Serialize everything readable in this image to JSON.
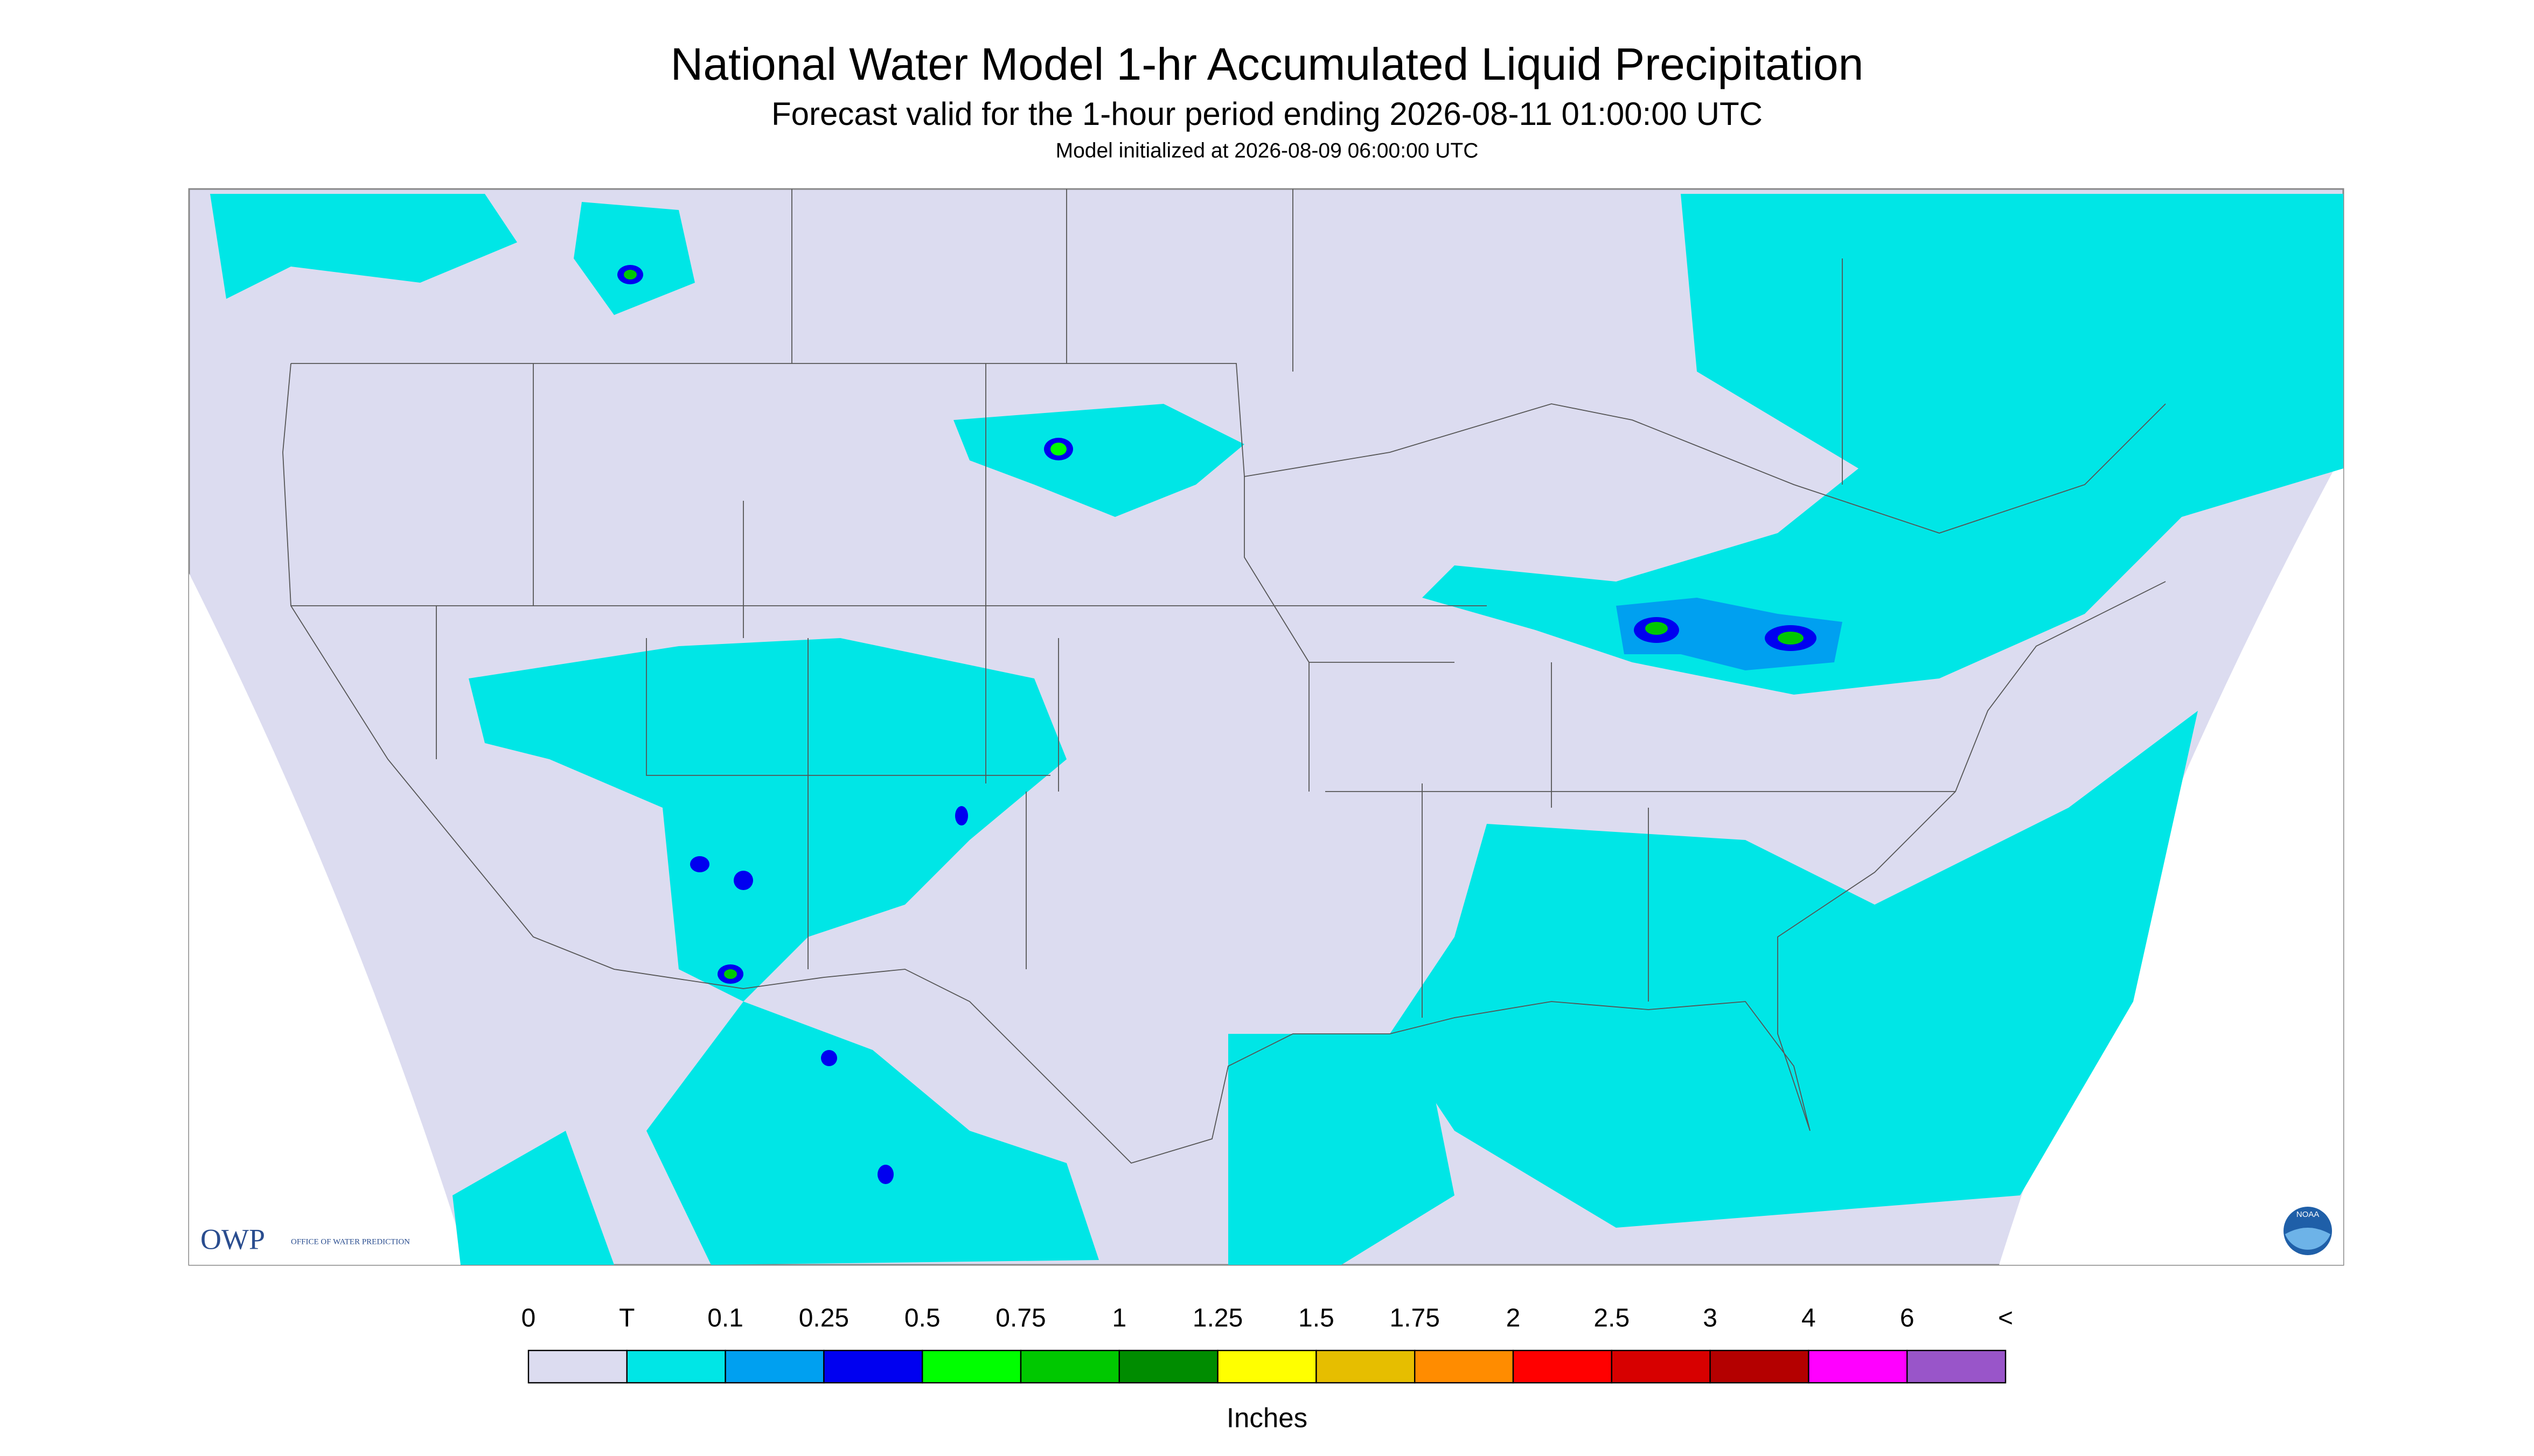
{
  "header": {
    "title": "National Water Model 1-hr Accumulated Liquid Precipitation",
    "subtitle": "Forecast valid for the 1-hour period ending 2026-08-11 01:00:00 UTC",
    "init": "Model initialized at 2026-08-09 06:00:00 UTC"
  },
  "legend": {
    "labels": [
      "0",
      "T",
      "0.1",
      "0.25",
      "0.5",
      "0.75",
      "1",
      "1.25",
      "1.5",
      "1.75",
      "2",
      "2.5",
      "3",
      "4",
      "6",
      "<"
    ],
    "colors": [
      "#dcdcf0",
      "#00e6e6",
      "#00a0f0",
      "#0000f0",
      "#00ff00",
      "#00c800",
      "#008c00",
      "#ffff00",
      "#e6be00",
      "#ff8c00",
      "#ff0000",
      "#d70000",
      "#b40000",
      "#ff00ff",
      "#9955c9"
    ],
    "unit": "Inches"
  },
  "logos": {
    "owp": "OWP",
    "owp_text": "OFFICE OF WATER PREDICTION",
    "noaa": "NOAA"
  }
}
